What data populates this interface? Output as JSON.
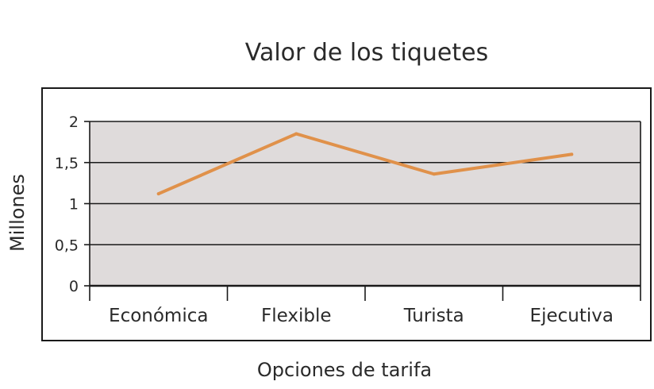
{
  "chart_data": {
    "type": "line",
    "title": "Valor de los tiquetes",
    "xlabel": "Opciones de tarifa",
    "ylabel": "Millones",
    "categories": [
      "Económica",
      "Flexible",
      "Turista",
      "Ejecutiva"
    ],
    "series": [
      {
        "values": [
          1.12,
          1.85,
          1.36,
          1.6
        ]
      }
    ],
    "ylim": [
      0,
      2
    ],
    "yticks": [
      0,
      0.5,
      1,
      1.5,
      2
    ],
    "ytick_labels": [
      "0",
      "0,5",
      "1",
      "1,5",
      "2"
    ],
    "grid": true,
    "legend": "none",
    "colors": {
      "line": "#e0914a",
      "plot_bg": "#dfdbdb",
      "grid": "#1a1a1a",
      "frame": "#1a1a1a"
    }
  }
}
